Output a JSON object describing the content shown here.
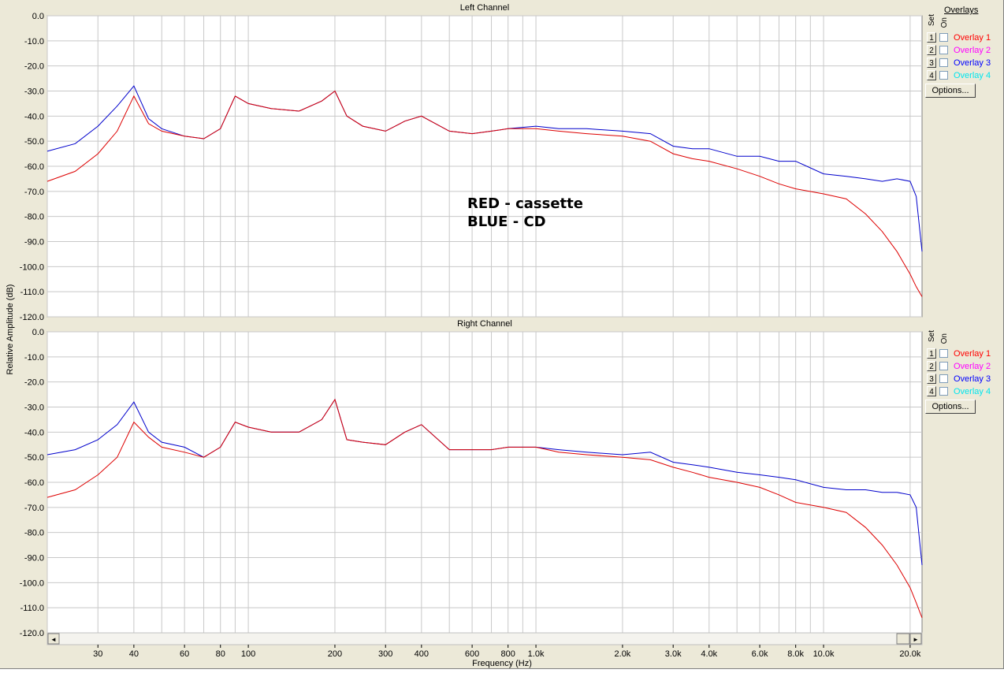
{
  "overlays_title": "Overlays",
  "set_label": "Set",
  "on_label": "On",
  "options_label": "Options...",
  "overlays": [
    {
      "num": "1",
      "name": "Overlay 1",
      "color": "#ff0000"
    },
    {
      "num": "2",
      "name": "Overlay 2",
      "color": "#ff00ff"
    },
    {
      "num": "3",
      "name": "Overlay 3",
      "color": "#0000ff"
    },
    {
      "num": "4",
      "name": "Overlay 4",
      "color": "#00e5ee"
    }
  ],
  "annotation": [
    "RED - cassette",
    "BLUE - CD"
  ],
  "scroll_left": "◄",
  "scroll_right": "►",
  "chart_data": [
    {
      "type": "line",
      "title": "Left Channel",
      "ylabel": "Relative Amplitude (dB)",
      "xlabel": "Frequency (Hz)",
      "xscale": "log",
      "xlim": [
        20,
        22000
      ],
      "ylim": [
        -120,
        0
      ],
      "grid": true,
      "yticks": [
        "0.0",
        "-10.0",
        "-20.0",
        "-30.0",
        "-40.0",
        "-50.0",
        "-60.0",
        "-70.0",
        "-80.0",
        "-90.0",
        "-100.0",
        "-110.0",
        "-120.0"
      ],
      "series": [
        {
          "color": "#0000cc",
          "x": [
            20,
            25,
            30,
            35,
            40,
            45,
            50,
            60,
            70,
            80,
            90,
            100,
            120,
            150,
            180,
            200,
            220,
            250,
            300,
            350,
            400,
            500,
            600,
            700,
            800,
            1000,
            1200,
            1500,
            2000,
            2500,
            3000,
            3500,
            4000,
            5000,
            6000,
            7000,
            8000,
            10000,
            12000,
            14000,
            16000,
            18000,
            20000,
            21000,
            22000
          ],
          "y": [
            -54,
            -51,
            -44,
            -36,
            -28,
            -41,
            -45,
            -48,
            -49,
            -45,
            -32,
            -35,
            -37,
            -38,
            -34,
            -30,
            -40,
            -44,
            -46,
            -42,
            -40,
            -46,
            -47,
            -46,
            -45,
            -44,
            -45,
            -45,
            -46,
            -47,
            -52,
            -53,
            -53,
            -56,
            -56,
            -58,
            -58,
            -63,
            -64,
            -65,
            -66,
            -65,
            -66,
            -72,
            -94
          ]
        },
        {
          "color": "#dd0000",
          "x": [
            20,
            25,
            30,
            35,
            40,
            45,
            50,
            60,
            70,
            80,
            90,
            100,
            120,
            150,
            180,
            200,
            220,
            250,
            300,
            350,
            400,
            500,
            600,
            700,
            800,
            1000,
            1200,
            1500,
            2000,
            2500,
            3000,
            3500,
            4000,
            5000,
            6000,
            7000,
            8000,
            10000,
            12000,
            14000,
            16000,
            18000,
            20000,
            21000,
            22000
          ],
          "y": [
            -66,
            -62,
            -55,
            -46,
            -32,
            -43,
            -46,
            -48,
            -49,
            -45,
            -32,
            -35,
            -37,
            -38,
            -34,
            -30,
            -40,
            -44,
            -46,
            -42,
            -40,
            -46,
            -47,
            -46,
            -45,
            -45,
            -46,
            -47,
            -48,
            -50,
            -55,
            -57,
            -58,
            -61,
            -64,
            -67,
            -69,
            -71,
            -73,
            -79,
            -86,
            -94,
            -103,
            -108,
            -112
          ]
        }
      ]
    },
    {
      "type": "line",
      "title": "Right Channel",
      "ylabel": "Relative Amplitude (dB)",
      "xlabel": "Frequency (Hz)",
      "xscale": "log",
      "xlim": [
        20,
        22000
      ],
      "ylim": [
        -120,
        0
      ],
      "grid": true,
      "yticks": [
        "0.0",
        "-10.0",
        "-20.0",
        "-30.0",
        "-40.0",
        "-50.0",
        "-60.0",
        "-70.0",
        "-80.0",
        "-90.0",
        "-100.0",
        "-110.0",
        "-120.0"
      ],
      "series": [
        {
          "color": "#0000cc",
          "x": [
            20,
            25,
            30,
            35,
            40,
            45,
            50,
            60,
            70,
            80,
            90,
            100,
            120,
            150,
            180,
            200,
            220,
            250,
            300,
            350,
            400,
            500,
            600,
            700,
            800,
            1000,
            1200,
            1500,
            2000,
            2500,
            3000,
            3500,
            4000,
            5000,
            6000,
            7000,
            8000,
            10000,
            12000,
            14000,
            16000,
            18000,
            20000,
            21000,
            22000
          ],
          "y": [
            -49,
            -47,
            -43,
            -37,
            -28,
            -40,
            -44,
            -46,
            -50,
            -46,
            -36,
            -38,
            -40,
            -40,
            -35,
            -27,
            -43,
            -44,
            -45,
            -40,
            -37,
            -47,
            -47,
            -47,
            -46,
            -46,
            -47,
            -48,
            -49,
            -48,
            -52,
            -53,
            -54,
            -56,
            -57,
            -58,
            -59,
            -62,
            -63,
            -63,
            -64,
            -64,
            -65,
            -70,
            -93
          ]
        },
        {
          "color": "#dd0000",
          "x": [
            20,
            25,
            30,
            35,
            40,
            45,
            50,
            60,
            70,
            80,
            90,
            100,
            120,
            150,
            180,
            200,
            220,
            250,
            300,
            350,
            400,
            500,
            600,
            700,
            800,
            1000,
            1200,
            1500,
            2000,
            2500,
            3000,
            3500,
            4000,
            5000,
            6000,
            7000,
            8000,
            10000,
            12000,
            14000,
            16000,
            18000,
            20000,
            21000,
            22000
          ],
          "y": [
            -66,
            -63,
            -57,
            -50,
            -36,
            -42,
            -46,
            -48,
            -50,
            -46,
            -36,
            -38,
            -40,
            -40,
            -35,
            -27,
            -43,
            -44,
            -45,
            -40,
            -37,
            -47,
            -47,
            -47,
            -46,
            -46,
            -48,
            -49,
            -50,
            -51,
            -54,
            -56,
            -58,
            -60,
            -62,
            -65,
            -68,
            -70,
            -72,
            -78,
            -85,
            -93,
            -102,
            -108,
            -114
          ]
        }
      ]
    }
  ],
  "xticks": [
    "30",
    "40",
    "60",
    "80",
    "100",
    "200",
    "300",
    "400",
    "600",
    "800",
    "1.0k",
    "2.0k",
    "3.0k",
    "4.0k",
    "6.0k",
    "8.0k",
    "10.0k",
    "20.0k"
  ]
}
